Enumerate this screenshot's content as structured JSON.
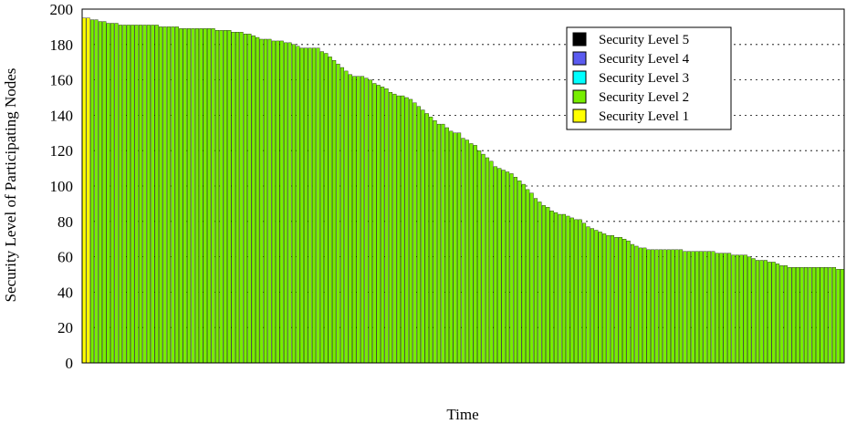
{
  "chart_data": {
    "type": "bar",
    "stacked": true,
    "title": "",
    "xlabel": "Time",
    "ylabel": "Security Level of Participating Nodes",
    "ylim": [
      0,
      200
    ],
    "yticks": [
      0,
      20,
      40,
      60,
      80,
      100,
      120,
      140,
      160,
      180,
      200
    ],
    "grid": "horizontal dotted",
    "legend_position": "top-right",
    "colors": {
      "Security Level 5": "#000000",
      "Security Level 4": "#5b5bf0",
      "Security Level 3": "#00ffff",
      "Security Level 2": "#77ee00",
      "Security Level 1": "#ffff00"
    },
    "series": [
      {
        "name": "Security Level 5",
        "values_note": "",
        "values": []
      },
      {
        "name": "Security Level 4",
        "values": []
      },
      {
        "name": "Security Level 3",
        "values": []
      },
      {
        "name": "Security Level 2",
        "values": []
      },
      {
        "name": "Security Level 1",
        "values": []
      }
    ],
    "totals": [
      195,
      195,
      194,
      194,
      193,
      193,
      192,
      192,
      192,
      191,
      191,
      191,
      191,
      191,
      191,
      191,
      191,
      191,
      191,
      190,
      190,
      190,
      190,
      190,
      189,
      189,
      189,
      189,
      189,
      189,
      189,
      189,
      189,
      188,
      188,
      188,
      188,
      187,
      187,
      187,
      186,
      186,
      185,
      184,
      183,
      183,
      183,
      182,
      182,
      182,
      181,
      181,
      180,
      179,
      178,
      178,
      178,
      178,
      178,
      176,
      175,
      173,
      171,
      169,
      167,
      165,
      163,
      162,
      162,
      162,
      161,
      160,
      158,
      157,
      156,
      155,
      153,
      152,
      151,
      151,
      150,
      149,
      147,
      145,
      143,
      141,
      139,
      137,
      135,
      135,
      133,
      131,
      130,
      130,
      127,
      126,
      124,
      123,
      120,
      118,
      116,
      114,
      111,
      110,
      109,
      108,
      107,
      105,
      103,
      101,
      98,
      96,
      93,
      91,
      89,
      88,
      86,
      85,
      84,
      84,
      83,
      82,
      81,
      81,
      79,
      77,
      76,
      75,
      74,
      73,
      72,
      72,
      71,
      71,
      70,
      69,
      67,
      66,
      65,
      65,
      64,
      64,
      64,
      64,
      64,
      64,
      64,
      64,
      64,
      63,
      63,
      63,
      63,
      63,
      63,
      63,
      63,
      62,
      62,
      62,
      62,
      61,
      61,
      61,
      61,
      60,
      59,
      58,
      58,
      58,
      57,
      57,
      56,
      55,
      55,
      54,
      54,
      54,
      54,
      54,
      54,
      54,
      54,
      54,
      54,
      54,
      54,
      53,
      53
    ]
  },
  "legend": {
    "items": [
      {
        "label": "Security Level 5",
        "color": "#000000"
      },
      {
        "label": "Security Level 4",
        "color": "#5b5bf0"
      },
      {
        "label": "Security Level 3",
        "color": "#00ffff"
      },
      {
        "label": "Security Level 2",
        "color": "#77ee00"
      },
      {
        "label": "Security Level 1",
        "color": "#ffff00"
      }
    ]
  }
}
